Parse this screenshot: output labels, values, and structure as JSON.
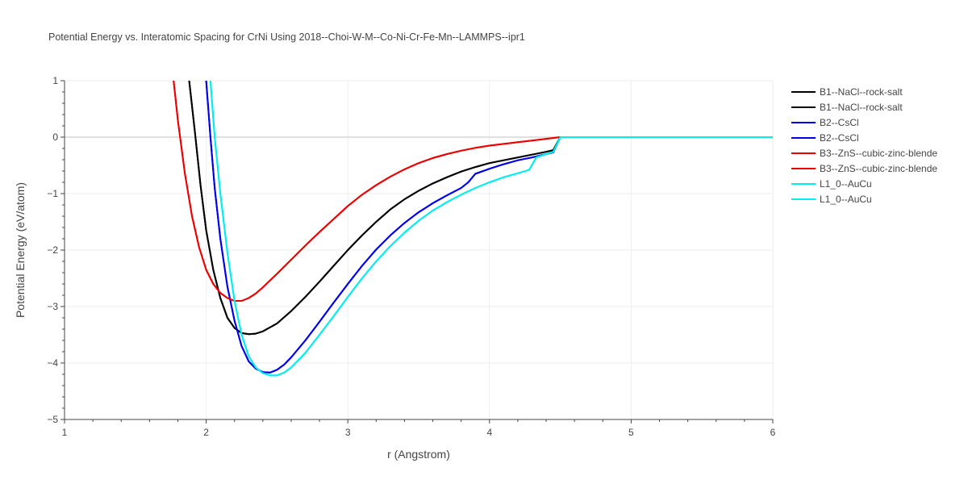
{
  "chart_data": {
    "type": "line",
    "title": "Potential Energy vs. Interatomic Spacing for CrNi Using 2018--Choi-W-M--Co-Ni-Cr-Fe-Mn--LAMMPS--ipr1",
    "xlabel": "r (Angstrom)",
    "ylabel": "Potential Energy (eV/atom)",
    "xlim": [
      1,
      6
    ],
    "ylim": [
      -5,
      1
    ],
    "xticks": [
      1,
      2,
      3,
      4,
      5,
      6
    ],
    "yticks": [
      1,
      0,
      -1,
      -2,
      -3,
      -4,
      -5
    ],
    "grid": true,
    "legend_position": "right",
    "series": [
      {
        "name": "B1--NaCl--rock-salt",
        "color": "#000000",
        "x": [
          1.88,
          1.92,
          1.96,
          2.0,
          2.05,
          2.1,
          2.15,
          2.2,
          2.25,
          2.3,
          2.35,
          2.4,
          2.5,
          2.6,
          2.7,
          2.8,
          2.9,
          3.0,
          3.1,
          3.2,
          3.3,
          3.4,
          3.5,
          3.6,
          3.7,
          3.8,
          3.9,
          4.0,
          4.1,
          4.2,
          4.3,
          4.4,
          4.45,
          4.5,
          6.0
        ],
        "y": [
          1.0,
          0.1,
          -0.85,
          -1.65,
          -2.35,
          -2.85,
          -3.2,
          -3.38,
          -3.47,
          -3.49,
          -3.48,
          -3.44,
          -3.3,
          -3.08,
          -2.83,
          -2.56,
          -2.28,
          -2.0,
          -1.74,
          -1.5,
          -1.28,
          -1.1,
          -0.95,
          -0.82,
          -0.71,
          -0.61,
          -0.53,
          -0.46,
          -0.41,
          -0.36,
          -0.31,
          -0.26,
          -0.23,
          0.0,
          0.0
        ]
      },
      {
        "name": "B1--NaCl--rock-salt",
        "color": "#000000",
        "x": [
          1.88,
          1.92,
          1.96,
          2.0,
          2.05,
          2.1,
          2.15,
          2.2,
          2.25,
          2.3,
          2.35,
          2.4,
          2.5,
          2.6,
          2.7,
          2.8,
          2.9,
          3.0,
          3.1,
          3.2,
          3.3,
          3.4,
          3.5,
          3.6,
          3.7,
          3.8,
          3.9,
          4.0,
          4.1,
          4.2,
          4.3,
          4.4,
          4.45,
          4.5,
          6.0
        ],
        "y": [
          1.0,
          0.1,
          -0.85,
          -1.65,
          -2.35,
          -2.85,
          -3.2,
          -3.38,
          -3.47,
          -3.49,
          -3.48,
          -3.44,
          -3.3,
          -3.08,
          -2.83,
          -2.56,
          -2.28,
          -2.0,
          -1.74,
          -1.5,
          -1.28,
          -1.1,
          -0.95,
          -0.82,
          -0.71,
          -0.61,
          -0.53,
          -0.46,
          -0.41,
          -0.36,
          -0.31,
          -0.26,
          -0.23,
          0.0,
          0.0
        ]
      },
      {
        "name": "B2--CsCl",
        "color": "#0000ee",
        "x": [
          2.0,
          2.03,
          2.06,
          2.1,
          2.15,
          2.2,
          2.25,
          2.3,
          2.35,
          2.4,
          2.45,
          2.5,
          2.55,
          2.6,
          2.7,
          2.8,
          2.9,
          3.0,
          3.1,
          3.2,
          3.3,
          3.4,
          3.5,
          3.6,
          3.7,
          3.8,
          3.85,
          3.9,
          4.0,
          4.1,
          4.2,
          4.3,
          4.4,
          4.45,
          4.5,
          6.0
        ],
        "y": [
          1.0,
          0.0,
          -0.9,
          -1.8,
          -2.65,
          -3.25,
          -3.7,
          -3.97,
          -4.1,
          -4.16,
          -4.17,
          -4.12,
          -4.03,
          -3.9,
          -3.6,
          -3.27,
          -2.93,
          -2.6,
          -2.28,
          -1.99,
          -1.74,
          -1.52,
          -1.33,
          -1.17,
          -1.03,
          -0.9,
          -0.8,
          -0.65,
          -0.56,
          -0.48,
          -0.41,
          -0.36,
          -0.3,
          -0.27,
          0.0,
          0.0
        ]
      },
      {
        "name": "B2--CsCl",
        "color": "#0000ee",
        "x": [
          2.0,
          2.03,
          2.06,
          2.1,
          2.15,
          2.2,
          2.25,
          2.3,
          2.35,
          2.4,
          2.45,
          2.5,
          2.55,
          2.6,
          2.7,
          2.8,
          2.9,
          3.0,
          3.1,
          3.2,
          3.3,
          3.4,
          3.5,
          3.6,
          3.7,
          3.8,
          3.85,
          3.9,
          4.0,
          4.1,
          4.2,
          4.3,
          4.4,
          4.45,
          4.5,
          6.0
        ],
        "y": [
          1.0,
          0.0,
          -0.9,
          -1.8,
          -2.65,
          -3.25,
          -3.7,
          -3.97,
          -4.1,
          -4.16,
          -4.17,
          -4.12,
          -4.03,
          -3.9,
          -3.6,
          -3.27,
          -2.93,
          -2.6,
          -2.28,
          -1.99,
          -1.74,
          -1.52,
          -1.33,
          -1.17,
          -1.03,
          -0.9,
          -0.8,
          -0.65,
          -0.56,
          -0.48,
          -0.41,
          -0.36,
          -0.3,
          -0.27,
          0.0,
          0.0
        ]
      },
      {
        "name": "B3--ZnS--cubic-zinc-blende",
        "color": "#ee0000",
        "x": [
          1.77,
          1.8,
          1.85,
          1.9,
          1.95,
          2.0,
          2.05,
          2.1,
          2.15,
          2.2,
          2.25,
          2.3,
          2.35,
          2.4,
          2.5,
          2.6,
          2.7,
          2.8,
          2.9,
          3.0,
          3.1,
          3.2,
          3.3,
          3.4,
          3.5,
          3.6,
          3.7,
          3.8,
          3.9,
          4.0,
          4.1,
          4.2,
          4.3,
          4.4,
          4.5,
          6.0
        ],
        "y": [
          1.0,
          0.3,
          -0.65,
          -1.4,
          -1.95,
          -2.35,
          -2.6,
          -2.76,
          -2.85,
          -2.9,
          -2.9,
          -2.85,
          -2.77,
          -2.66,
          -2.42,
          -2.17,
          -1.92,
          -1.68,
          -1.45,
          -1.22,
          -1.02,
          -0.85,
          -0.7,
          -0.57,
          -0.46,
          -0.37,
          -0.3,
          -0.24,
          -0.19,
          -0.15,
          -0.12,
          -0.09,
          -0.06,
          -0.03,
          0.0,
          0.0
        ]
      },
      {
        "name": "B3--ZnS--cubic-zinc-blende",
        "color": "#ee0000",
        "x": [
          1.77,
          1.8,
          1.85,
          1.9,
          1.95,
          2.0,
          2.05,
          2.1,
          2.15,
          2.2,
          2.25,
          2.3,
          2.35,
          2.4,
          2.5,
          2.6,
          2.7,
          2.8,
          2.9,
          3.0,
          3.1,
          3.2,
          3.3,
          3.4,
          3.5,
          3.6,
          3.7,
          3.8,
          3.9,
          4.0,
          4.1,
          4.2,
          4.3,
          4.4,
          4.5,
          6.0
        ],
        "y": [
          1.0,
          0.3,
          -0.65,
          -1.4,
          -1.95,
          -2.35,
          -2.6,
          -2.76,
          -2.85,
          -2.9,
          -2.9,
          -2.85,
          -2.77,
          -2.66,
          -2.42,
          -2.17,
          -1.92,
          -1.68,
          -1.45,
          -1.22,
          -1.02,
          -0.85,
          -0.7,
          -0.57,
          -0.46,
          -0.37,
          -0.3,
          -0.24,
          -0.19,
          -0.15,
          -0.12,
          -0.09,
          -0.06,
          -0.03,
          0.0,
          0.0
        ]
      },
      {
        "name": "L1_0--AuCu",
        "color": "#00eeee",
        "x": [
          2.03,
          2.06,
          2.1,
          2.15,
          2.2,
          2.25,
          2.3,
          2.35,
          2.4,
          2.45,
          2.5,
          2.55,
          2.6,
          2.7,
          2.8,
          2.9,
          3.0,
          3.1,
          3.2,
          3.3,
          3.4,
          3.5,
          3.6,
          3.7,
          3.8,
          3.9,
          4.0,
          4.1,
          4.2,
          4.28,
          4.33,
          4.4,
          4.45,
          4.5,
          6.0
        ],
        "y": [
          1.0,
          0.0,
          -1.0,
          -2.05,
          -2.9,
          -3.5,
          -3.88,
          -4.08,
          -4.18,
          -4.22,
          -4.22,
          -4.17,
          -4.08,
          -3.82,
          -3.5,
          -3.17,
          -2.83,
          -2.5,
          -2.2,
          -1.93,
          -1.69,
          -1.48,
          -1.3,
          -1.15,
          -1.02,
          -0.9,
          -0.8,
          -0.71,
          -0.64,
          -0.58,
          -0.36,
          -0.3,
          -0.26,
          0.0,
          0.0
        ]
      },
      {
        "name": "L1_0--AuCu",
        "color": "#00eeee",
        "x": [
          2.03,
          2.06,
          2.1,
          2.15,
          2.2,
          2.25,
          2.3,
          2.35,
          2.4,
          2.45,
          2.5,
          2.55,
          2.6,
          2.7,
          2.8,
          2.9,
          3.0,
          3.1,
          3.2,
          3.3,
          3.4,
          3.5,
          3.6,
          3.7,
          3.8,
          3.9,
          4.0,
          4.1,
          4.2,
          4.28,
          4.33,
          4.4,
          4.45,
          4.5,
          6.0
        ],
        "y": [
          1.0,
          0.0,
          -1.0,
          -2.05,
          -2.9,
          -3.5,
          -3.88,
          -4.08,
          -4.18,
          -4.22,
          -4.22,
          -4.17,
          -4.08,
          -3.82,
          -3.5,
          -3.17,
          -2.83,
          -2.5,
          -2.2,
          -1.93,
          -1.69,
          -1.48,
          -1.3,
          -1.15,
          -1.02,
          -0.9,
          -0.8,
          -0.71,
          -0.64,
          -0.58,
          -0.36,
          -0.3,
          -0.26,
          0.0,
          0.0
        ]
      }
    ]
  }
}
